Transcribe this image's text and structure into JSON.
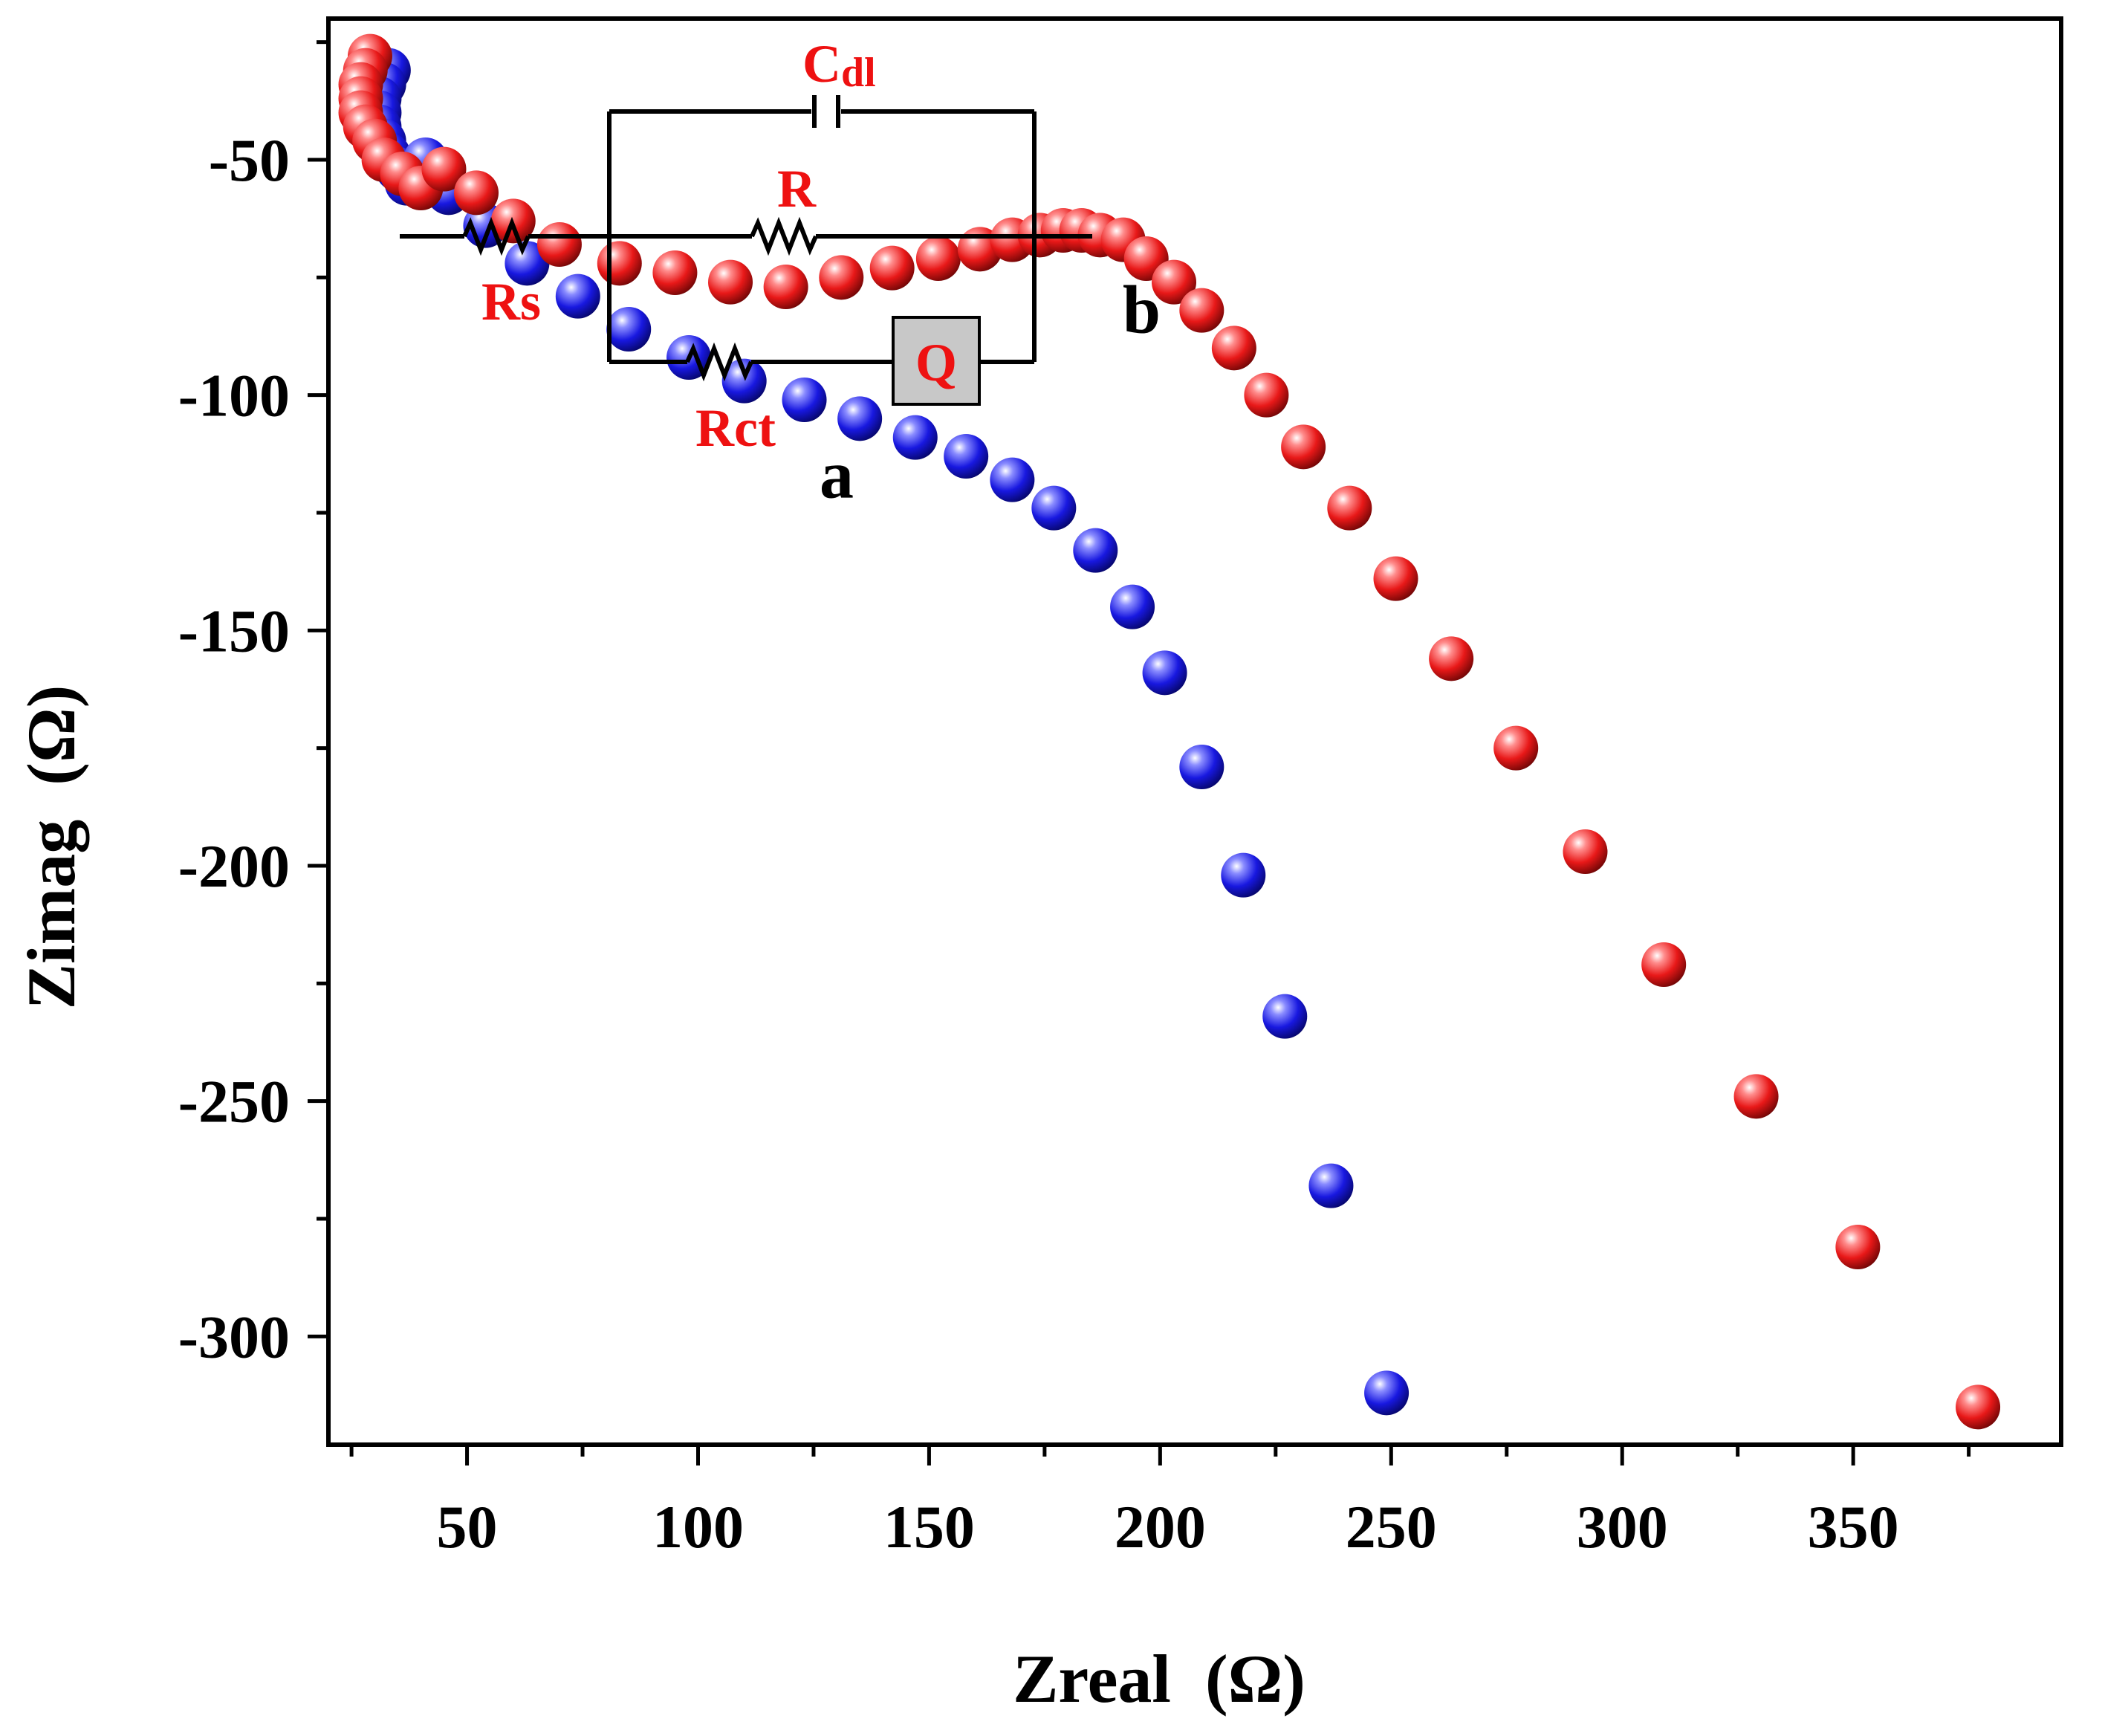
{
  "chart_data": {
    "type": "scatter",
    "title": "",
    "xlabel": "Zreal  (Ω)",
    "ylabel": "Zimag  (Ω)",
    "xlim": [
      20,
      395
    ],
    "ylim": [
      -323,
      -20
    ],
    "y_inverted": true,
    "grid": false,
    "x_ticks": [
      50,
      100,
      150,
      200,
      250,
      300,
      350
    ],
    "x_tick_labels": [
      "50",
      "100",
      "150",
      "200",
      "250",
      "300",
      "350"
    ],
    "y_ticks": [
      -50,
      -100,
      -150,
      -200,
      -250,
      -300
    ],
    "y_tick_labels": [
      "-50",
      "-100",
      "-150",
      "-200",
      "-250",
      "-300"
    ],
    "series": [
      {
        "name": "a",
        "color": "#1a1aee",
        "x": [
          33,
          32,
          31,
          31,
          31,
          32,
          33,
          35,
          37,
          41,
          46,
          54,
          63,
          74,
          85,
          98,
          110,
          123,
          135,
          147,
          158,
          168,
          177,
          186,
          194,
          201,
          209,
          218,
          227,
          237,
          249
        ],
        "y": [
          -31,
          -34,
          -37,
          -40,
          -43,
          -46,
          -49,
          -52,
          -55,
          -50,
          -57,
          -64,
          -72,
          -79,
          -86,
          -92,
          -97,
          -101,
          -105,
          -109,
          -113,
          -118,
          -124,
          -133,
          -145,
          -159,
          -179,
          -202,
          -232,
          -268,
          -312
        ]
      },
      {
        "name": "b",
        "color": "#ee1a1a",
        "x": [
          29,
          28,
          27,
          27,
          27,
          28,
          30,
          32,
          36,
          40,
          45,
          52,
          60,
          70,
          83,
          95,
          107,
          119,
          131,
          142,
          152,
          161,
          168,
          174,
          179,
          183,
          187,
          192,
          197,
          203,
          209,
          216,
          223,
          231,
          241,
          251,
          263,
          277,
          292,
          309,
          329,
          351,
          377
        ],
        "y": [
          -28,
          -31,
          -34,
          -37,
          -40,
          -43,
          -46,
          -50,
          -53,
          -56,
          -52,
          -57,
          -63,
          -68,
          -72,
          -74,
          -76,
          -77,
          -75,
          -73,
          -71,
          -69,
          -67,
          -66,
          -65,
          -65,
          -66,
          -67,
          -71,
          -76,
          -82,
          -90,
          -100,
          -111,
          -124,
          -139,
          -156,
          -175,
          -197,
          -221,
          -249,
          -281,
          -315
        ]
      }
    ],
    "annotations": [
      {
        "text": "a",
        "x": 130,
        "y": -117
      },
      {
        "text": "b",
        "x": 196,
        "y": -82
      }
    ]
  },
  "inset_circuit": {
    "labels": {
      "cdl_main": "C",
      "cdl_sub": "dl",
      "r": "R",
      "rs": "Rs",
      "rct": "Rct",
      "q": "Q"
    },
    "label_color": "#ee1111",
    "box_fill": "#c8c8c8"
  }
}
